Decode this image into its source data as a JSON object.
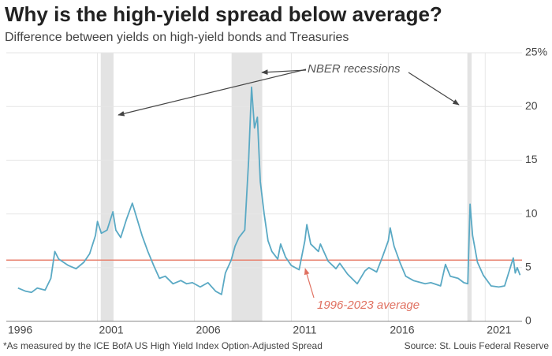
{
  "chart_data": {
    "type": "line",
    "title": "Why is the high-yield spread below average?",
    "subtitle": "Difference between yields on high-yield bonds and Treasuries",
    "footnote": "*As measured by the ICE BofA US High Yield Index Option-Adjusted Spread",
    "source": "Source: St. Louis Federal Reserve",
    "recession_label": "NBER recessions",
    "average_label": "1996-2023 average",
    "average": 5.7,
    "average_color": "#e8826f",
    "recessions": [
      [
        2001.17,
        2001.83
      ],
      [
        2007.92,
        2009.5
      ],
      [
        2020.08,
        2020.3
      ]
    ],
    "color": "#5aa9c4",
    "x": [
      1996.9,
      1997.3,
      1997.6,
      1997.9,
      1998.3,
      1998.6,
      1998.8,
      1999.0,
      1999.5,
      1999.9,
      2000.3,
      2000.6,
      2000.9,
      2001.0,
      2001.2,
      2001.5,
      2001.8,
      2001.95,
      2002.2,
      2002.5,
      2002.8,
      2003.0,
      2003.3,
      2003.6,
      2003.9,
      2004.2,
      2004.5,
      2004.9,
      2005.3,
      2005.6,
      2005.9,
      2006.3,
      2006.7,
      2007.1,
      2007.4,
      2007.6,
      2007.9,
      2008.1,
      2008.3,
      2008.6,
      2008.8,
      2008.95,
      2009.1,
      2009.25,
      2009.4,
      2009.6,
      2009.8,
      2010.0,
      2010.3,
      2010.45,
      2010.7,
      2011.0,
      2011.4,
      2011.7,
      2011.8,
      2012.0,
      2012.4,
      2012.5,
      2012.9,
      2013.3,
      2013.5,
      2013.9,
      2014.4,
      2014.8,
      2015.0,
      2015.4,
      2015.7,
      2016.0,
      2016.1,
      2016.3,
      2016.6,
      2016.9,
      2017.3,
      2017.9,
      2018.2,
      2018.7,
      2018.95,
      2019.2,
      2019.6,
      2019.9,
      2020.1,
      2020.22,
      2020.35,
      2020.6,
      2020.9,
      2021.3,
      2021.7,
      2022.0,
      2022.45,
      2022.55,
      2022.65,
      2022.8
    ],
    "values": [
      3.1,
      2.8,
      2.7,
      3.1,
      2.9,
      4.0,
      6.5,
      5.8,
      5.2,
      4.9,
      5.5,
      6.3,
      8.0,
      9.3,
      8.2,
      8.5,
      10.2,
      8.5,
      7.8,
      9.5,
      11.0,
      9.8,
      8.0,
      6.5,
      5.2,
      4.0,
      4.2,
      3.5,
      3.8,
      3.5,
      3.6,
      3.2,
      3.6,
      2.8,
      2.5,
      4.5,
      5.7,
      7.0,
      7.8,
      8.5,
      15.0,
      21.8,
      18.0,
      19.0,
      13.0,
      10.0,
      7.5,
      6.5,
      5.8,
      7.2,
      6.0,
      5.2,
      4.8,
      7.5,
      9.0,
      7.2,
      6.5,
      7.2,
      5.6,
      4.9,
      5.4,
      4.4,
      3.5,
      4.7,
      5.0,
      4.6,
      6.0,
      7.5,
      8.7,
      7.0,
      5.5,
      4.2,
      3.8,
      3.5,
      3.6,
      3.3,
      5.3,
      4.2,
      4.0,
      3.6,
      3.5,
      10.9,
      8.0,
      5.5,
      4.3,
      3.3,
      3.2,
      3.3,
      5.9,
      4.5,
      5.0,
      4.3
    ],
    "xlim": [
      1996.3,
      2022.9
    ],
    "xticks": [
      1996,
      2001,
      2006,
      2011,
      2016,
      2021
    ],
    "ylim": [
      0,
      25
    ],
    "yticks": [
      0,
      5,
      10,
      15,
      20,
      {
        "value": 25,
        "label": "25%"
      }
    ],
    "grid": true
  }
}
